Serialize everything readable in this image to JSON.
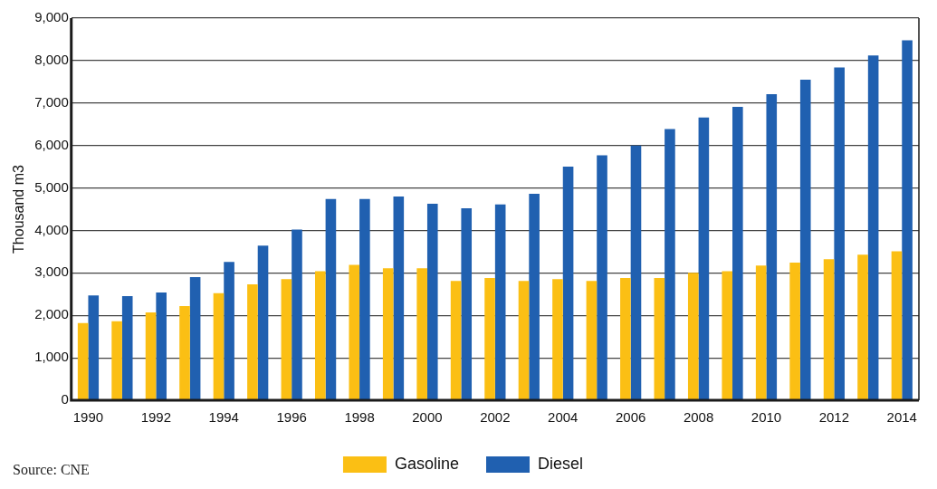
{
  "chart_data": {
    "type": "bar",
    "ylabel": "Thousand m3",
    "categories": [
      "1990",
      null,
      "1992",
      null,
      "1994",
      null,
      "1996",
      null,
      "1998",
      null,
      "2000",
      null,
      "2002",
      null,
      "2004",
      null,
      "2006",
      null,
      "2008",
      null,
      "2010",
      null,
      "2012",
      null,
      "2014"
    ],
    "series": [
      {
        "name": "Gasoline",
        "color": "#fbbf14",
        "values": [
          1820,
          1860,
          2070,
          2220,
          2520,
          2730,
          2850,
          3040,
          3190,
          3110,
          3110,
          2810,
          2880,
          2810,
          2850,
          2810,
          2880,
          2880,
          3000,
          3040,
          3170,
          3240,
          3320,
          3430,
          3510
        ]
      },
      {
        "name": "Diesel",
        "color": "#2060b0",
        "values": [
          2470,
          2450,
          2540,
          2900,
          3260,
          3640,
          4020,
          4740,
          4740,
          4800,
          4630,
          4520,
          4610,
          4860,
          5500,
          5770,
          6000,
          6390,
          6660,
          6910,
          7210,
          7550,
          7840,
          8120,
          8480
        ]
      }
    ],
    "ylim": [
      0,
      9000
    ],
    "yticks": [
      {
        "value": 0,
        "label": "0"
      },
      {
        "value": 1000,
        "label": "1,000"
      },
      {
        "value": 2000,
        "label": "2,000"
      },
      {
        "value": 3000,
        "label": "3,000"
      },
      {
        "value": 4000,
        "label": "4,000"
      },
      {
        "value": 5000,
        "label": "5,000"
      },
      {
        "value": 6000,
        "label": "6,000"
      },
      {
        "value": 7000,
        "label": "7,000"
      },
      {
        "value": 8000,
        "label": "8,000"
      },
      {
        "value": 9000,
        "label": "9,000"
      }
    ],
    "grid": "y",
    "legend": "bottom",
    "annotations": [
      "Source: CNE"
    ]
  }
}
